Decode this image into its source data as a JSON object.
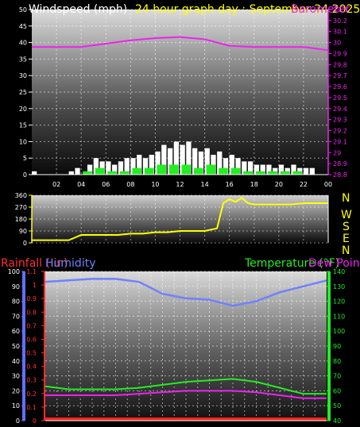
{
  "header": {
    "title_speed": "Windspeed (mph)",
    "title_range": "24 hour graph day : September 24 2025",
    "title_baro": "Barometer"
  },
  "compass": {
    "labels": [
      "N",
      "W",
      "S",
      "E",
      "N"
    ]
  },
  "lower_header": {
    "rainfall": "Rainfall ( in)",
    "humidity": "Humidity",
    "temperature": "Temperature (°F)",
    "dewpoint": "Dew Point"
  },
  "colors": {
    "speed": "#ffffff",
    "gust": "#22ee22",
    "baro": "#ee22ee",
    "direction": "#ffff00",
    "humidity": "#7080ff",
    "temperature": "#22ee22",
    "dewpoint": "#ee22ee",
    "rain": "#ff2020",
    "rain_axis": "#ff3030",
    "humidity_axis": "#6070ff",
    "temp_axis": "#22ee22",
    "title_speed": "#ffffff",
    "title_range": "#ffff00"
  },
  "chart_data": [
    {
      "type": "bar",
      "title": "Windspeed (mph) 24 hour graph day : September 24 2025",
      "x_ticks": [
        "02",
        "04",
        "06",
        "08",
        "10",
        "12",
        "14",
        "16",
        "18",
        "20",
        "22",
        "00"
      ],
      "y_left": {
        "ticks": [
          "0",
          "5",
          "10",
          "15",
          "20",
          "25",
          "30",
          "35",
          "40",
          "45",
          "50"
        ],
        "ylim": [
          0,
          50
        ]
      },
      "y_right": {
        "label": "Barometer",
        "ticks": [
          "28.8",
          "28.9",
          "29",
          "29.1",
          "29.2",
          "29.3",
          "29.4",
          "29.5",
          "29.6",
          "29.7",
          "29.8",
          "29.9",
          "30",
          "30.1",
          "30.2",
          "30.3"
        ],
        "ylim": [
          28.8,
          30.3
        ]
      },
      "series": [
        {
          "name": "Windspeed (mph)",
          "unit": "mph",
          "x_hours": [
            0,
            0.5,
            1,
            1.5,
            2,
            2.5,
            3,
            3.5,
            4,
            4.5,
            5,
            5.5,
            6,
            6.5,
            7,
            7.5,
            8,
            8.5,
            9,
            9.5,
            10,
            10.5,
            11,
            11.5,
            12,
            12.5,
            13,
            13.5,
            14,
            14.5,
            15,
            15.5,
            16,
            16.5,
            17,
            17.5,
            18,
            18.5,
            19,
            19.5,
            20,
            20.5,
            21,
            21.5,
            22,
            22.5,
            23,
            23.5
          ],
          "values": [
            1,
            0,
            0,
            0,
            0,
            0,
            1,
            2,
            0,
            3,
            5,
            4,
            4,
            3,
            4,
            5,
            5,
            6,
            5,
            6,
            7,
            9,
            8,
            10,
            9,
            10,
            8,
            7,
            8,
            6,
            7,
            5,
            6,
            5,
            4,
            4,
            3,
            3,
            3,
            2,
            3,
            2,
            3,
            2,
            2,
            2,
            0,
            0
          ]
        },
        {
          "name": "Gust",
          "x_hours": [
            0,
            1,
            2,
            3,
            4,
            5,
            6,
            7,
            8,
            9,
            10,
            11,
            12,
            13,
            14,
            15,
            16,
            17,
            18,
            19,
            20,
            21,
            22,
            23
          ],
          "values": [
            0,
            0,
            0,
            0,
            1,
            2,
            1,
            1,
            2,
            2,
            3,
            3,
            3,
            2,
            3,
            2,
            2,
            1,
            1,
            1,
            1,
            1,
            0,
            0
          ]
        },
        {
          "name": "Barometer",
          "unit": "inHg",
          "x_hours": [
            0,
            2,
            4,
            6,
            8,
            10,
            12,
            14,
            16,
            18,
            20,
            22,
            24
          ],
          "values": [
            29.96,
            29.96,
            29.96,
            29.99,
            30.02,
            30.04,
            30.05,
            30.03,
            29.97,
            29.96,
            29.96,
            29.96,
            29.93
          ]
        }
      ]
    },
    {
      "type": "line",
      "title": "Wind direction",
      "y_ticks": [
        "0",
        "90",
        "180",
        "270",
        "360"
      ],
      "ylim": [
        0,
        360
      ],
      "series": [
        {
          "name": "Wind direction",
          "unit": "degrees",
          "x_hours": [
            0,
            1,
            2,
            3,
            4,
            5,
            6,
            7,
            8,
            9,
            10,
            11,
            12,
            13,
            14,
            15,
            15.5,
            16,
            16.5,
            17,
            17.5,
            18,
            19,
            20,
            21,
            22,
            23,
            24
          ],
          "values": [
            20,
            20,
            20,
            20,
            60,
            60,
            60,
            60,
            70,
            70,
            80,
            80,
            90,
            90,
            90,
            110,
            300,
            330,
            310,
            340,
            300,
            290,
            290,
            290,
            290,
            300,
            300,
            300
          ]
        }
      ]
    },
    {
      "type": "line",
      "y_left_rain": {
        "ticks": [
          "0",
          "0.1",
          "0.2",
          "0.3",
          "0.4",
          "0.5",
          "0.6",
          "0.7",
          "0.8",
          "0.9",
          "1",
          "1.1"
        ],
        "ylim": [
          0,
          1.1
        ]
      },
      "y_left_humidity": {
        "ticks": [
          "0",
          "10",
          "20",
          "30",
          "40",
          "50",
          "60",
          "70",
          "80",
          "90",
          "100"
        ],
        "ylim": [
          0,
          100
        ]
      },
      "y_right_temperature": {
        "ticks": [
          "40",
          "50",
          "60",
          "70",
          "80",
          "90",
          "100",
          "110",
          "120",
          "130",
          "140"
        ],
        "ylim": [
          40,
          140
        ]
      },
      "series": [
        {
          "name": "Humidity",
          "unit": "%",
          "x_hours": [
            0,
            2,
            4,
            6,
            8,
            10,
            12,
            14,
            16,
            18,
            20,
            22,
            24
          ],
          "values": [
            93,
            94,
            95,
            95,
            93,
            85,
            82,
            81,
            77,
            80,
            86,
            90,
            94
          ]
        },
        {
          "name": "Temperature (°F)",
          "unit": "°F",
          "x_hours": [
            0,
            2,
            4,
            6,
            8,
            10,
            12,
            14,
            16,
            18,
            20,
            22,
            24
          ],
          "values": [
            63,
            61,
            61,
            61,
            62,
            64,
            66,
            67,
            68,
            66,
            62,
            58,
            58
          ]
        },
        {
          "name": "Dew Point",
          "unit": "°F",
          "x_hours": [
            0,
            2,
            4,
            6,
            8,
            10,
            12,
            14,
            16,
            18,
            20,
            22,
            24
          ],
          "values": [
            57,
            57,
            57,
            57,
            58,
            59,
            60,
            60,
            60,
            59,
            57,
            55,
            55
          ]
        },
        {
          "name": "Rainfall ( in)",
          "unit": "in",
          "x_hours": [
            0,
            24
          ],
          "values": [
            0,
            0
          ]
        }
      ]
    }
  ]
}
